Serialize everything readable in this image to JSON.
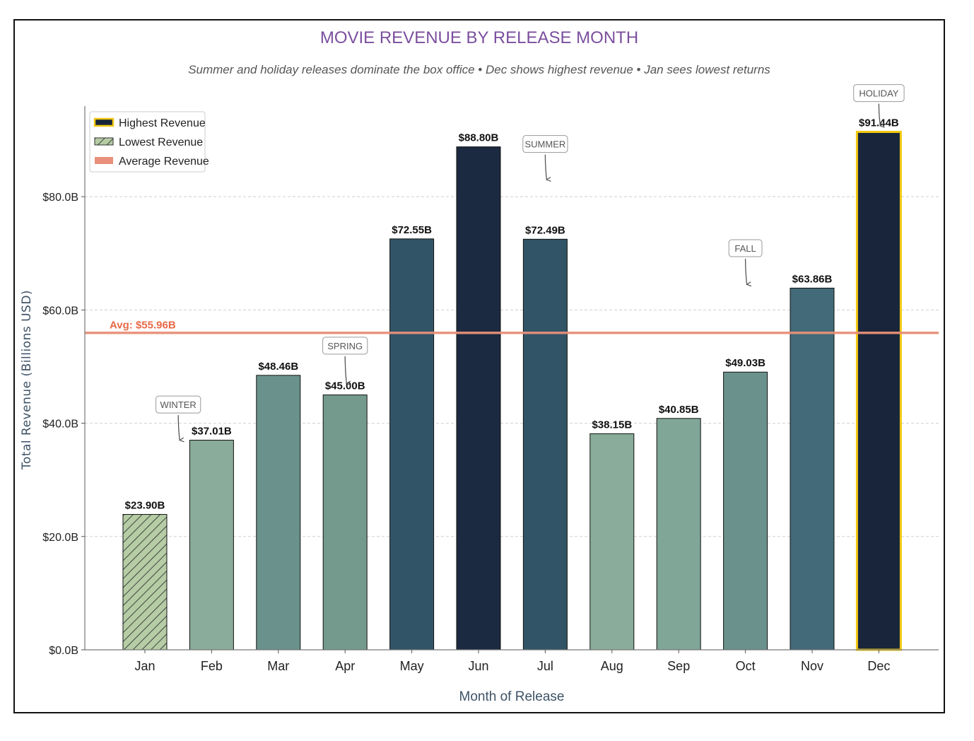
{
  "chart_data": {
    "type": "bar",
    "title": "MOVIE REVENUE BY RELEASE MONTH",
    "subtitle": "Summer and holiday releases dominate the box office • Dec shows highest revenue • Jan sees lowest returns",
    "xlabel": "Month of Release",
    "ylabel": "Total Revenue (Billions USD)",
    "categories": [
      "Jan",
      "Feb",
      "Mar",
      "Apr",
      "May",
      "Jun",
      "Jul",
      "Aug",
      "Sep",
      "Oct",
      "Nov",
      "Dec"
    ],
    "values": [
      23.9,
      37.01,
      48.46,
      45.0,
      72.55,
      88.8,
      72.49,
      38.15,
      40.85,
      49.03,
      63.86,
      91.44
    ],
    "value_labels": [
      "$23.90B",
      "$37.01B",
      "$48.46B",
      "$45.00B",
      "$72.55B",
      "$88.80B",
      "$72.49B",
      "$38.15B",
      "$40.85B",
      "$49.03B",
      "$63.86B",
      "$91.44B"
    ],
    "bar_colors": [
      "#b5cca5",
      "#8aac9a",
      "#6a918c",
      "#749a8e",
      "#325467",
      "#1b2a40",
      "#325467",
      "#8aac9a",
      "#80a698",
      "#6a918c",
      "#426a78",
      "#18253a"
    ],
    "ylim": [
      0,
      96
    ],
    "yticks": [
      0,
      20,
      40,
      60,
      80
    ],
    "ytick_labels": [
      "$0.0B",
      "$20.0B",
      "$40.0B",
      "$60.0B",
      "$80.0B"
    ],
    "grid": "y-dashed",
    "average": {
      "value": 55.96,
      "label": "Avg: $55.96B",
      "color": "#e8907a"
    },
    "highlights": {
      "highest_index": 11,
      "lowest_index": 0,
      "highest_edge": "#f2c811"
    },
    "legend": {
      "position": "top-left",
      "items": [
        {
          "label": "Highest Revenue",
          "kind": "highest"
        },
        {
          "label": "Lowest Revenue",
          "kind": "lowest"
        },
        {
          "label": "Average Revenue",
          "kind": "average"
        }
      ]
    },
    "annotations": [
      {
        "text": "WINTER",
        "category_index": 0.5,
        "label_y": 43.3,
        "arrow_to_y": 37.0
      },
      {
        "text": "SPRING",
        "category_index": 3.0,
        "label_y": 53.7,
        "arrow_to_y": 47.0
      },
      {
        "text": "SUMMER",
        "category_index": 6.0,
        "label_y": 89.3,
        "arrow_to_y": 83.0
      },
      {
        "text": "FALL",
        "category_index": 9.0,
        "label_y": 70.9,
        "arrow_to_y": 64.5
      },
      {
        "text": "HOLIDAY",
        "category_index": 11.0,
        "label_y": 98.3,
        "arrow_to_y": 92.5
      }
    ],
    "colors": {
      "title": "#7b4f9e",
      "subtitle": "#555555",
      "axis_label": "#3e5366",
      "tick": "#222222"
    }
  }
}
